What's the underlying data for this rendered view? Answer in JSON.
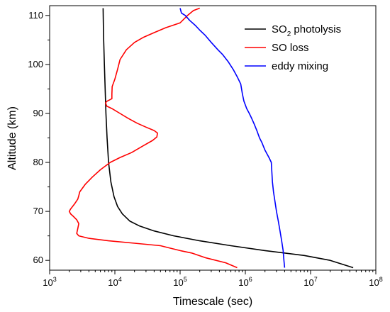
{
  "chart_data": {
    "type": "line",
    "xlabel": "Timescale (sec)",
    "ylabel": "Altitude (km)",
    "xscale": "log",
    "xlim": [
      1000,
      100000000
    ],
    "ylim": [
      58,
      112
    ],
    "grid": false,
    "legend_position": "top-right",
    "x_ticks": [
      {
        "value": 1000,
        "base": "10",
        "exp": "3"
      },
      {
        "value": 10000,
        "base": "10",
        "exp": "4"
      },
      {
        "value": 100000,
        "base": "10",
        "exp": "5"
      },
      {
        "value": 1000000,
        "base": "10",
        "exp": "6"
      },
      {
        "value": 10000000,
        "base": "10",
        "exp": "7"
      },
      {
        "value": 100000000,
        "base": "10",
        "exp": "8"
      }
    ],
    "y_ticks": [
      60,
      70,
      80,
      90,
      100,
      110
    ],
    "series": [
      {
        "name": "SO2 photolysis",
        "label_main": "SO",
        "label_sub": "2",
        "label_rest": " photolysis",
        "color": "#000000",
        "points": [
          [
            6600,
            111.5
          ],
          [
            6700,
            106
          ],
          [
            6900,
            100
          ],
          [
            7100,
            95
          ],
          [
            7300,
            90
          ],
          [
            7600,
            85
          ],
          [
            8000,
            80
          ],
          [
            8700,
            76
          ],
          [
            9700,
            73
          ],
          [
            11000,
            71
          ],
          [
            13000,
            69.5
          ],
          [
            17000,
            68
          ],
          [
            24000,
            67
          ],
          [
            40000,
            66
          ],
          [
            80000,
            65
          ],
          [
            200000,
            64
          ],
          [
            600000,
            63
          ],
          [
            2000000,
            62
          ],
          [
            8000000,
            61
          ],
          [
            20000000,
            60
          ],
          [
            45000000,
            58.5
          ]
        ]
      },
      {
        "name": "SO loss",
        "color": "#ff0000",
        "points": [
          [
            200000,
            111.5
          ],
          [
            160000,
            111
          ],
          [
            130000,
            110
          ],
          [
            100000,
            108.5
          ],
          [
            60000,
            107.5
          ],
          [
            40000,
            106.5
          ],
          [
            27000,
            105.5
          ],
          [
            20000,
            104.5
          ],
          [
            15000,
            103
          ],
          [
            12000,
            101
          ],
          [
            11000,
            99
          ],
          [
            10000,
            97
          ],
          [
            9100,
            95.5
          ],
          [
            9000,
            94
          ],
          [
            9000,
            93
          ],
          [
            7600,
            92.5
          ],
          [
            7200,
            92.2
          ],
          [
            7500,
            91.5
          ],
          [
            9000,
            91
          ],
          [
            12000,
            90
          ],
          [
            16000,
            89
          ],
          [
            22000,
            88
          ],
          [
            30000,
            87.2
          ],
          [
            40000,
            86.5
          ],
          [
            45000,
            86
          ],
          [
            44000,
            85.2
          ],
          [
            38000,
            84.5
          ],
          [
            28000,
            83.5
          ],
          [
            18000,
            82
          ],
          [
            12000,
            81
          ],
          [
            8500,
            80
          ],
          [
            6000,
            78.5
          ],
          [
            4500,
            77
          ],
          [
            3500,
            75.5
          ],
          [
            2900,
            74
          ],
          [
            2800,
            73.2
          ],
          [
            2700,
            72.5
          ],
          [
            2400,
            71.5
          ],
          [
            2100,
            70.5
          ],
          [
            2000,
            70
          ],
          [
            2100,
            69.5
          ],
          [
            2300,
            69
          ],
          [
            2600,
            68.3
          ],
          [
            2800,
            67.5
          ],
          [
            2700,
            66.5
          ],
          [
            2600,
            65.5
          ],
          [
            2800,
            65
          ],
          [
            4000,
            64.5
          ],
          [
            8000,
            64
          ],
          [
            20000,
            63.5
          ],
          [
            50000,
            63
          ],
          [
            70000,
            62.5
          ],
          [
            100000,
            62
          ],
          [
            150000,
            61.5
          ],
          [
            250000,
            60.5
          ],
          [
            500000,
            59.5
          ],
          [
            750000,
            58.5
          ]
        ]
      },
      {
        "name": "eddy mixing",
        "color": "#0000ff",
        "points": [
          [
            100000,
            111.5
          ],
          [
            105000,
            110.5
          ],
          [
            120000,
            110
          ],
          [
            140000,
            109
          ],
          [
            170000,
            108
          ],
          [
            200000,
            107
          ],
          [
            240000,
            106
          ],
          [
            300000,
            104.5
          ],
          [
            380000,
            103
          ],
          [
            450000,
            102
          ],
          [
            550000,
            100.5
          ],
          [
            650000,
            99
          ],
          [
            750000,
            97.5
          ],
          [
            850000,
            96
          ],
          [
            900000,
            94
          ],
          [
            950000,
            92.5
          ],
          [
            1050000,
            91
          ],
          [
            1150000,
            90
          ],
          [
            1250000,
            89
          ],
          [
            1350000,
            88
          ],
          [
            1500000,
            86.5
          ],
          [
            1650000,
            85
          ],
          [
            1800000,
            84
          ],
          [
            2000000,
            82.5
          ],
          [
            2300000,
            81
          ],
          [
            2500000,
            80
          ],
          [
            2550000,
            78
          ],
          [
            2600000,
            76
          ],
          [
            2700000,
            74
          ],
          [
            2850000,
            72
          ],
          [
            3000000,
            70
          ],
          [
            3200000,
            68
          ],
          [
            3400000,
            66
          ],
          [
            3600000,
            64
          ],
          [
            3800000,
            62
          ],
          [
            3900000,
            60
          ],
          [
            4000000,
            58.5
          ]
        ]
      }
    ]
  }
}
